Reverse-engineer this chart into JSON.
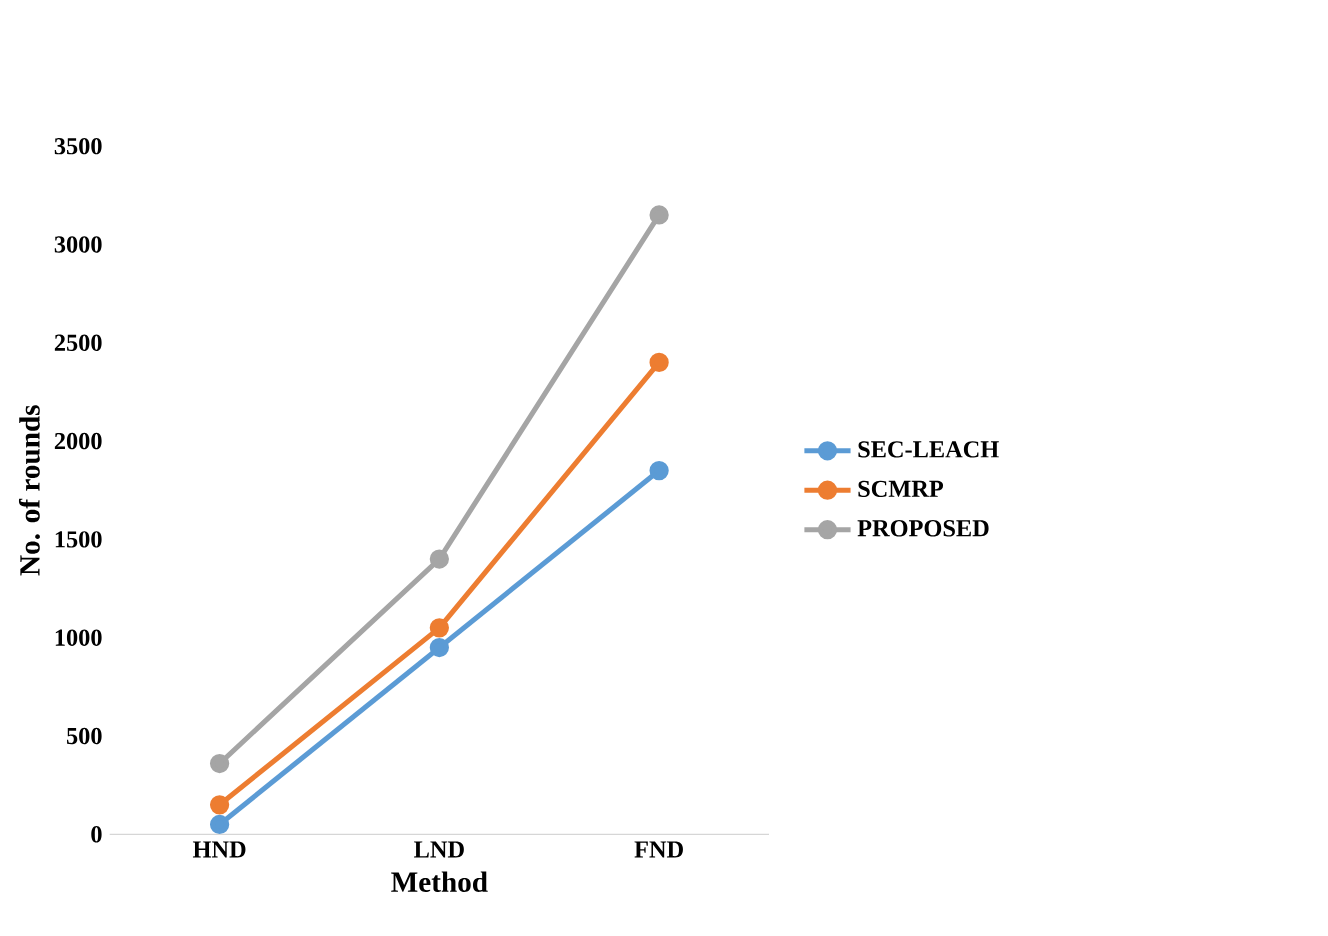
{
  "chart_data": {
    "type": "line",
    "xlabel": "Method",
    "ylabel": "No. of rounds",
    "categories": [
      "HND",
      "LND",
      "FND"
    ],
    "series": [
      {
        "name": "SEC-LEACH",
        "color": "#5b9bd5",
        "values": [
          50,
          950,
          1850
        ]
      },
      {
        "name": "SCMRP",
        "color": "#ed7d31",
        "values": [
          150,
          1050,
          2400
        ]
      },
      {
        "name": "PROPOSED",
        "color": "#a5a5a5",
        "values": [
          360,
          1400,
          3150
        ]
      }
    ],
    "ylim": [
      0,
      3500
    ],
    "yticks": [
      0,
      500,
      1000,
      1500,
      2000,
      2500,
      3000,
      3500
    ],
    "grid": false,
    "legend": "right",
    "marker": "circle",
    "line_style": "solid"
  }
}
